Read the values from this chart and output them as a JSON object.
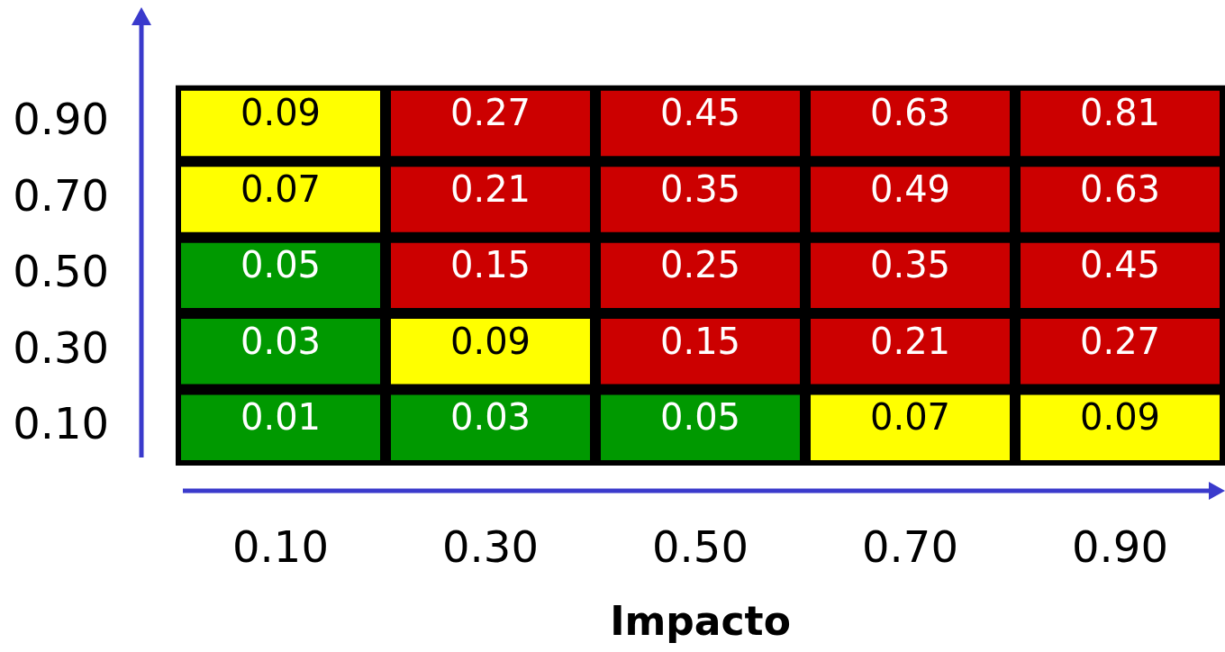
{
  "chart_data": {
    "type": "heatmap",
    "xlabel": "Impacto",
    "categories": [
      "0.10",
      "0.30",
      "0.50",
      "0.70",
      "0.90"
    ],
    "y_categories": [
      "0.90",
      "0.70",
      "0.50",
      "0.30",
      "0.10"
    ],
    "cells": [
      [
        0.09,
        0.27,
        0.45,
        0.63,
        0.81
      ],
      [
        0.07,
        0.21,
        0.35,
        0.49,
        0.63
      ],
      [
        0.05,
        0.15,
        0.25,
        0.35,
        0.45
      ],
      [
        0.03,
        0.09,
        0.15,
        0.21,
        0.27
      ],
      [
        0.01,
        0.03,
        0.05,
        0.07,
        0.09
      ]
    ],
    "data_labels": true,
    "colors": [
      [
        "#ffff00",
        "#cc0000",
        "#cc0000",
        "#cc0000",
        "#cc0000"
      ],
      [
        "#ffff00",
        "#cc0000",
        "#cc0000",
        "#cc0000",
        "#cc0000"
      ],
      [
        "#009900",
        "#cc0000",
        "#cc0000",
        "#cc0000",
        "#cc0000"
      ],
      [
        "#009900",
        "#ffff00",
        "#cc0000",
        "#cc0000",
        "#cc0000"
      ],
      [
        "#009900",
        "#009900",
        "#009900",
        "#ffff00",
        "#ffff00"
      ]
    ]
  }
}
